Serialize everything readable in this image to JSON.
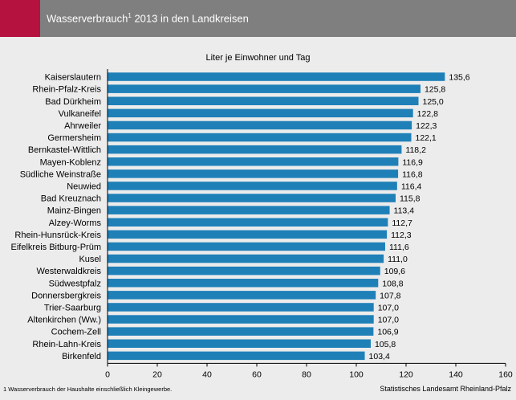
{
  "header": {
    "title": "Wasserverbrauch",
    "title_sup": "1",
    "title_rest": " 2013 in den Landkreisen",
    "accent_color": "#b5123f",
    "bar_color": "#7f7f7f"
  },
  "chart_data": {
    "type": "bar",
    "orientation": "horizontal",
    "title": "Wasserverbrauch¹ 2013 in den Landkreisen",
    "subtitle": "Liter je Einwohner und Tag",
    "categories": [
      "Kaiserslautern",
      "Rhein-Pfalz-Kreis",
      "Bad Dürkheim",
      "Vulkaneifel",
      "Ahrweiler",
      "Germersheim",
      "Bernkastel-Wittlich",
      "Mayen-Koblenz",
      "Südliche Weinstraße",
      "Neuwied",
      "Bad Kreuznach",
      "Mainz-Bingen",
      "Alzey-Worms",
      "Rhein-Hunsrück-Kreis",
      "Eifelkreis Bitburg-Prüm",
      "Kusel",
      "Westerwaldkreis",
      "Südwestpfalz",
      "Donnersbergkreis",
      "Trier-Saarburg",
      "Altenkirchen (Ww.)",
      "Cochem-Zell",
      "Rhein-Lahn-Kreis",
      "Birkenfeld"
    ],
    "values": [
      135.6,
      125.8,
      125.0,
      122.8,
      122.3,
      122.1,
      118.2,
      116.9,
      116.8,
      116.4,
      115.8,
      113.4,
      112.7,
      112.3,
      111.6,
      111.0,
      109.6,
      108.8,
      107.8,
      107.0,
      107.0,
      106.9,
      105.8,
      103.4
    ],
    "value_labels": [
      "135,6",
      "125,8",
      "125,0",
      "122,8",
      "122,3",
      "122,1",
      "118,2",
      "116,9",
      "116,8",
      "116,4",
      "115,8",
      "113,4",
      "112,7",
      "112,3",
      "111,6",
      "111,0",
      "109,6",
      "108,8",
      "107,8",
      "107,0",
      "107,0",
      "106,9",
      "105,8",
      "103,4"
    ],
    "xlim": [
      0,
      160
    ],
    "xticks": [
      0,
      20,
      40,
      60,
      80,
      100,
      120,
      140,
      160
    ],
    "bar_color": "#1f80b8",
    "grid": false,
    "footnote": "1 Wasserverbrauch der Haushalte einschließlich Kleingewerbe.",
    "source": "Statistisches Landesamt Rheinland-Pfalz"
  }
}
